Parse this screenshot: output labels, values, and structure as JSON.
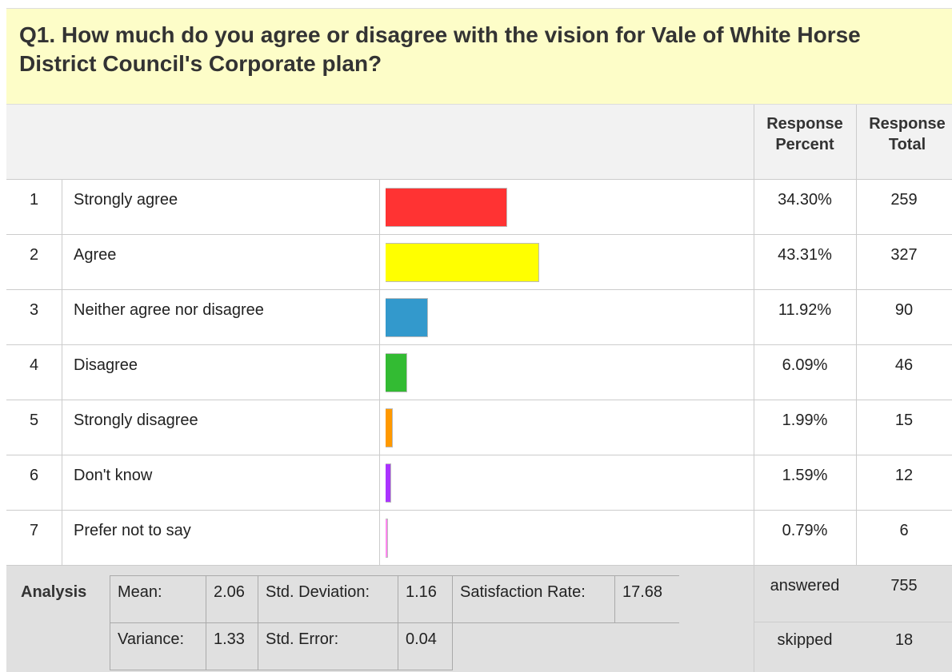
{
  "question": {
    "title": "Q1. How much do you agree or disagree with the vision for Vale of White Horse District Council's Corporate plan?"
  },
  "table": {
    "headers": {
      "percent": "Response Percent",
      "total": "Response Total"
    },
    "bar_max": 100,
    "rows": [
      {
        "number": "1",
        "label": "Strongly agree",
        "percent": {
          "value": 34.3,
          "label": "34.30%"
        },
        "total": "259",
        "color": "#ff3333"
      },
      {
        "number": "2",
        "label": "Agree",
        "percent": {
          "value": 43.31,
          "label": "43.31%"
        },
        "total": "327",
        "color": "#ffff00"
      },
      {
        "number": "3",
        "label": "Neither agree nor disagree",
        "percent": {
          "value": 11.92,
          "label": "11.92%"
        },
        "total": "90",
        "color": "#3399cc"
      },
      {
        "number": "4",
        "label": "Disagree",
        "percent": {
          "value": 6.09,
          "label": "6.09%"
        },
        "total": "46",
        "color": "#33bb33"
      },
      {
        "number": "5",
        "label": "Strongly disagree",
        "percent": {
          "value": 1.99,
          "label": "1.99%"
        },
        "total": "15",
        "color": "#ff9900"
      },
      {
        "number": "6",
        "label": "Don't know",
        "percent": {
          "value": 1.59,
          "label": "1.59%"
        },
        "total": "12",
        "color": "#aa33ff"
      },
      {
        "number": "7",
        "label": "Prefer not to say",
        "percent": {
          "value": 0.79,
          "label": "0.79%"
        },
        "total": "6",
        "color": "#ff88ee"
      }
    ]
  },
  "analysis": {
    "title": "Analysis",
    "mean_label": "Mean:",
    "mean": "2.06",
    "std_dev_label": "Std. Deviation:",
    "std_dev": "1.16",
    "satisfaction_label": "Satisfaction Rate:",
    "satisfaction": "17.68",
    "variance_label": "Variance:",
    "variance": "1.33",
    "std_error_label": "Std. Error:",
    "std_error": "0.04",
    "answered_label": "answered",
    "answered": "755",
    "skipped_label": "skipped",
    "skipped": "18"
  }
}
